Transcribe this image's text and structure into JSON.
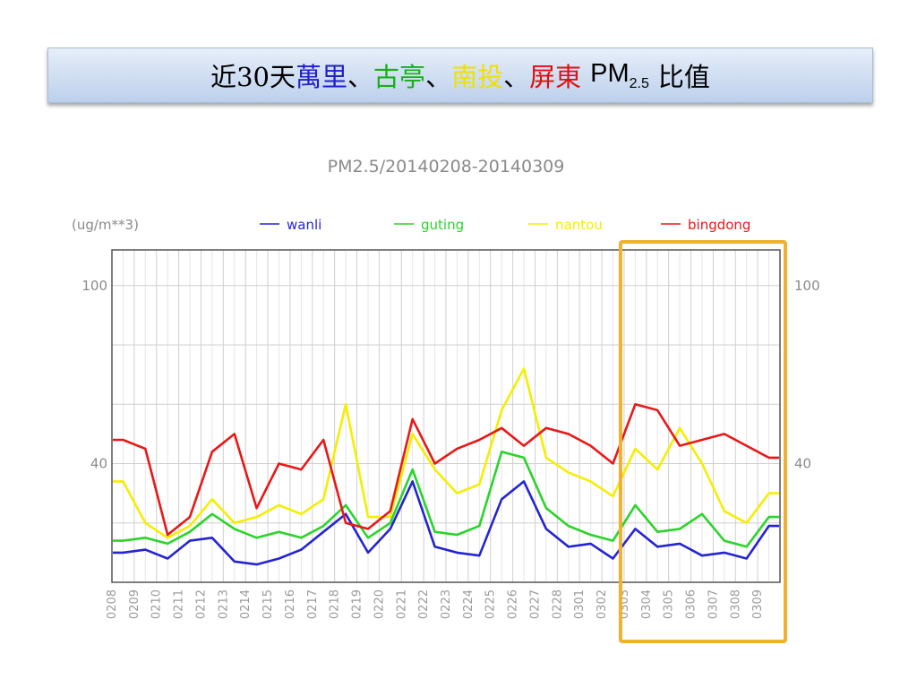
{
  "slide": {
    "title_prefix": "近30天",
    "stations": [
      {
        "name": "萬里",
        "color": "#1f1fd0"
      },
      {
        "name": "古亭",
        "color": "#18b018"
      },
      {
        "name": "南投",
        "color": "#f0e000"
      },
      {
        "name": "屏東",
        "color": "#e01010"
      }
    ],
    "separator": "、",
    "pollutant_main": "PM",
    "pollutant_sub": "2.5",
    "title_suffix": "比值"
  },
  "highlight": {
    "color": "#f0b030",
    "from_category": "0303",
    "to_category": "0309"
  },
  "chart_data": {
    "type": "line",
    "title": "PM2.5/20140208-20140309",
    "unit_label": "(ug/m**3)",
    "ylim": [
      0,
      112
    ],
    "yticks": [
      40,
      100
    ],
    "y_gridlines": [
      20,
      40,
      60,
      80,
      100
    ],
    "grid": true,
    "legend_position": "top",
    "categories": [
      "0208",
      "0209",
      "0210",
      "0211",
      "0212",
      "0213",
      "0214",
      "0215",
      "0216",
      "0217",
      "0218",
      "0219",
      "0220",
      "0221",
      "0222",
      "0223",
      "0224",
      "0225",
      "0226",
      "0227",
      "0228",
      "0301",
      "0302",
      "0303",
      "0304",
      "0305",
      "0306",
      "0307",
      "0308",
      "0309"
    ],
    "series": [
      {
        "name": "wanli",
        "color": "#2424d4",
        "values": [
          10,
          11,
          8,
          14,
          15,
          7,
          6,
          8,
          11,
          17,
          23,
          10,
          18,
          34,
          12,
          10,
          9,
          28,
          34,
          18,
          12,
          13,
          8,
          18,
          12,
          13,
          9,
          10,
          8,
          19
        ]
      },
      {
        "name": "guting",
        "color": "#2ad42a",
        "values": [
          14,
          15,
          13,
          17,
          23,
          18,
          15,
          17,
          15,
          19,
          26,
          15,
          20,
          38,
          17,
          16,
          19,
          44,
          42,
          25,
          19,
          16,
          14,
          26,
          17,
          18,
          23,
          14,
          12,
          22
        ]
      },
      {
        "name": "nantou",
        "color": "#f5ee00",
        "values": [
          34,
          20,
          15,
          19,
          28,
          20,
          22,
          26,
          23,
          28,
          60,
          22,
          22,
          50,
          38,
          30,
          33,
          58,
          72,
          42,
          37,
          34,
          29,
          45,
          38,
          52,
          40,
          24,
          20,
          30
        ]
      },
      {
        "name": "bingdong",
        "color": "#e81818",
        "values": [
          48,
          45,
          16,
          22,
          44,
          50,
          25,
          40,
          38,
          48,
          20,
          18,
          24,
          55,
          40,
          45,
          48,
          52,
          46,
          52,
          50,
          46,
          40,
          60,
          58,
          46,
          48,
          50,
          46,
          42
        ]
      }
    ]
  }
}
